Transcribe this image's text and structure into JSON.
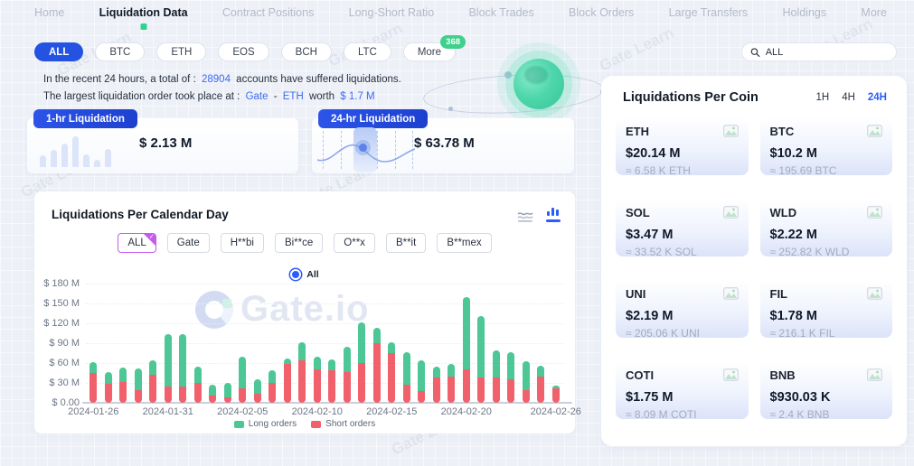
{
  "watermark": "Gate Learn",
  "nav": {
    "items": [
      {
        "label": "Home",
        "active": false
      },
      {
        "label": "Liquidation Data",
        "active": true
      },
      {
        "label": "Contract Positions",
        "active": false
      },
      {
        "label": "Long-Short Ratio",
        "active": false
      },
      {
        "label": "Block Trades",
        "active": false
      },
      {
        "label": "Block Orders",
        "active": false
      },
      {
        "label": "Large Transfers",
        "active": false
      },
      {
        "label": "Holdings",
        "active": false
      },
      {
        "label": "More",
        "active": false
      }
    ]
  },
  "filters": {
    "coins": [
      "ALL",
      "BTC",
      "ETH",
      "EOS",
      "BCH",
      "LTC",
      "More"
    ],
    "active": "ALL",
    "more_badge": "368"
  },
  "search": {
    "value": "ALL"
  },
  "summary": {
    "line1_prefix": "In the recent 24 hours, a total of :",
    "line1_count": "28904",
    "line1_suffix": "accounts have suffered liquidations.",
    "line2_prefix": "The largest liquidation order took place at :",
    "line2_exchange": "Gate",
    "line2_dash": "-",
    "line2_coin": "ETH",
    "line2_worth": "worth",
    "line2_value": "$ 1.7 M"
  },
  "stats": {
    "one_hr": {
      "label": "1-hr Liquidation",
      "value": "$ 2.13 M"
    },
    "day": {
      "label": "24-hr Liquidation",
      "value": "$ 63.78 M"
    }
  },
  "chart_card": {
    "title": "Liquidations Per Calendar Day",
    "exchanges": [
      "ALL",
      "Gate",
      "H**bi",
      "Bi**ce",
      "O**x",
      "B**it",
      "B**mex"
    ],
    "active_exchange": "ALL",
    "radio_label": "All",
    "watermark": "Gate.io"
  },
  "chart_data": {
    "type": "bar",
    "stacked": true,
    "title": "Liquidations Per Calendar Day",
    "unit": "USD millions",
    "x": [
      "2024-01-26",
      "2024-01-27",
      "2024-01-28",
      "2024-01-29",
      "2024-01-30",
      "2024-01-31",
      "2024-02-01",
      "2024-02-02",
      "2024-02-03",
      "2024-02-04",
      "2024-02-05",
      "2024-02-06",
      "2024-02-07",
      "2024-02-08",
      "2024-02-09",
      "2024-02-10",
      "2024-02-11",
      "2024-02-12",
      "2024-02-13",
      "2024-02-14",
      "2024-02-15",
      "2024-02-16",
      "2024-02-17",
      "2024-02-18",
      "2024-02-19",
      "2024-02-20",
      "2024-02-21",
      "2024-02-22",
      "2024-02-23",
      "2024-02-24",
      "2024-02-25",
      "2024-02-26"
    ],
    "series": [
      {
        "name": "Long orders",
        "color": "#4cc795",
        "values": [
          17,
          17,
          22,
          33,
          22,
          79,
          78,
          25,
          16,
          22,
          48,
          21,
          19,
          8,
          27,
          20,
          17,
          39,
          62,
          23,
          17,
          50,
          46,
          17,
          18,
          110,
          93,
          41,
          41,
          44,
          16,
          4
        ]
      },
      {
        "name": "Short orders",
        "color": "#f0616c",
        "values": [
          45,
          29,
          31,
          19,
          42,
          25,
          25,
          30,
          11,
          8,
          22,
          14,
          30,
          59,
          64,
          50,
          49,
          46,
          60,
          90,
          75,
          27,
          18,
          38,
          40,
          50,
          38,
          38,
          35,
          19,
          40,
          22
        ]
      }
    ],
    "ylim": [
      0,
      180
    ],
    "y_tick_labels": [
      "$ 0.00",
      "$ 30 M",
      "$ 60 M",
      "$ 90 M",
      "$ 120 M",
      "$ 150 M",
      "$ 180 M"
    ],
    "x_tick_labels": [
      "2024-01-26",
      "2024-01-31",
      "2024-02-05",
      "2024-02-10",
      "2024-02-15",
      "2024-02-20",
      "2024-02-26"
    ],
    "legend": [
      "Long orders",
      "Short orders"
    ],
    "legend_position": "bottom",
    "grid": true
  },
  "coin_panel": {
    "title": "Liquidations Per Coin",
    "periods": [
      "1H",
      "4H",
      "24H"
    ],
    "active_period": "24H",
    "coins": [
      {
        "symbol": "ETH",
        "usd": "$20.14 M",
        "amount": "≈ 6.58 K ETH"
      },
      {
        "symbol": "BTC",
        "usd": "$10.2 M",
        "amount": "≈ 195.69 BTC"
      },
      {
        "symbol": "SOL",
        "usd": "$3.47 M",
        "amount": "≈ 33.52 K SOL"
      },
      {
        "symbol": "WLD",
        "usd": "$2.22 M",
        "amount": "≈ 252.82 K WLD"
      },
      {
        "symbol": "UNI",
        "usd": "$2.19 M",
        "amount": "≈ 205.06 K UNI"
      },
      {
        "symbol": "FIL",
        "usd": "$1.78 M",
        "amount": "≈ 216.1 K FIL"
      },
      {
        "symbol": "COTI",
        "usd": "$1.75 M",
        "amount": "≈ 8.09 M COTI"
      },
      {
        "symbol": "BNB",
        "usd": "$930.03 K",
        "amount": "≈ 2.4 K BNB"
      }
    ]
  },
  "icons": [
    "search-icon",
    "line-chart-icon",
    "bar-chart-icon",
    "check-icon",
    "image-placeholder-icon",
    "radio-icon",
    "globe-graphic"
  ],
  "colors": {
    "accent_blue": "#2353e0",
    "link_blue": "#3e6bf2",
    "active_tab_blue": "#2b5cff",
    "green_long": "#4cc795",
    "red_short": "#f0616c",
    "badge_green": "#3fd08c",
    "nav_indicator_green": "#2fd391",
    "page_bg": "#edf0f7"
  }
}
